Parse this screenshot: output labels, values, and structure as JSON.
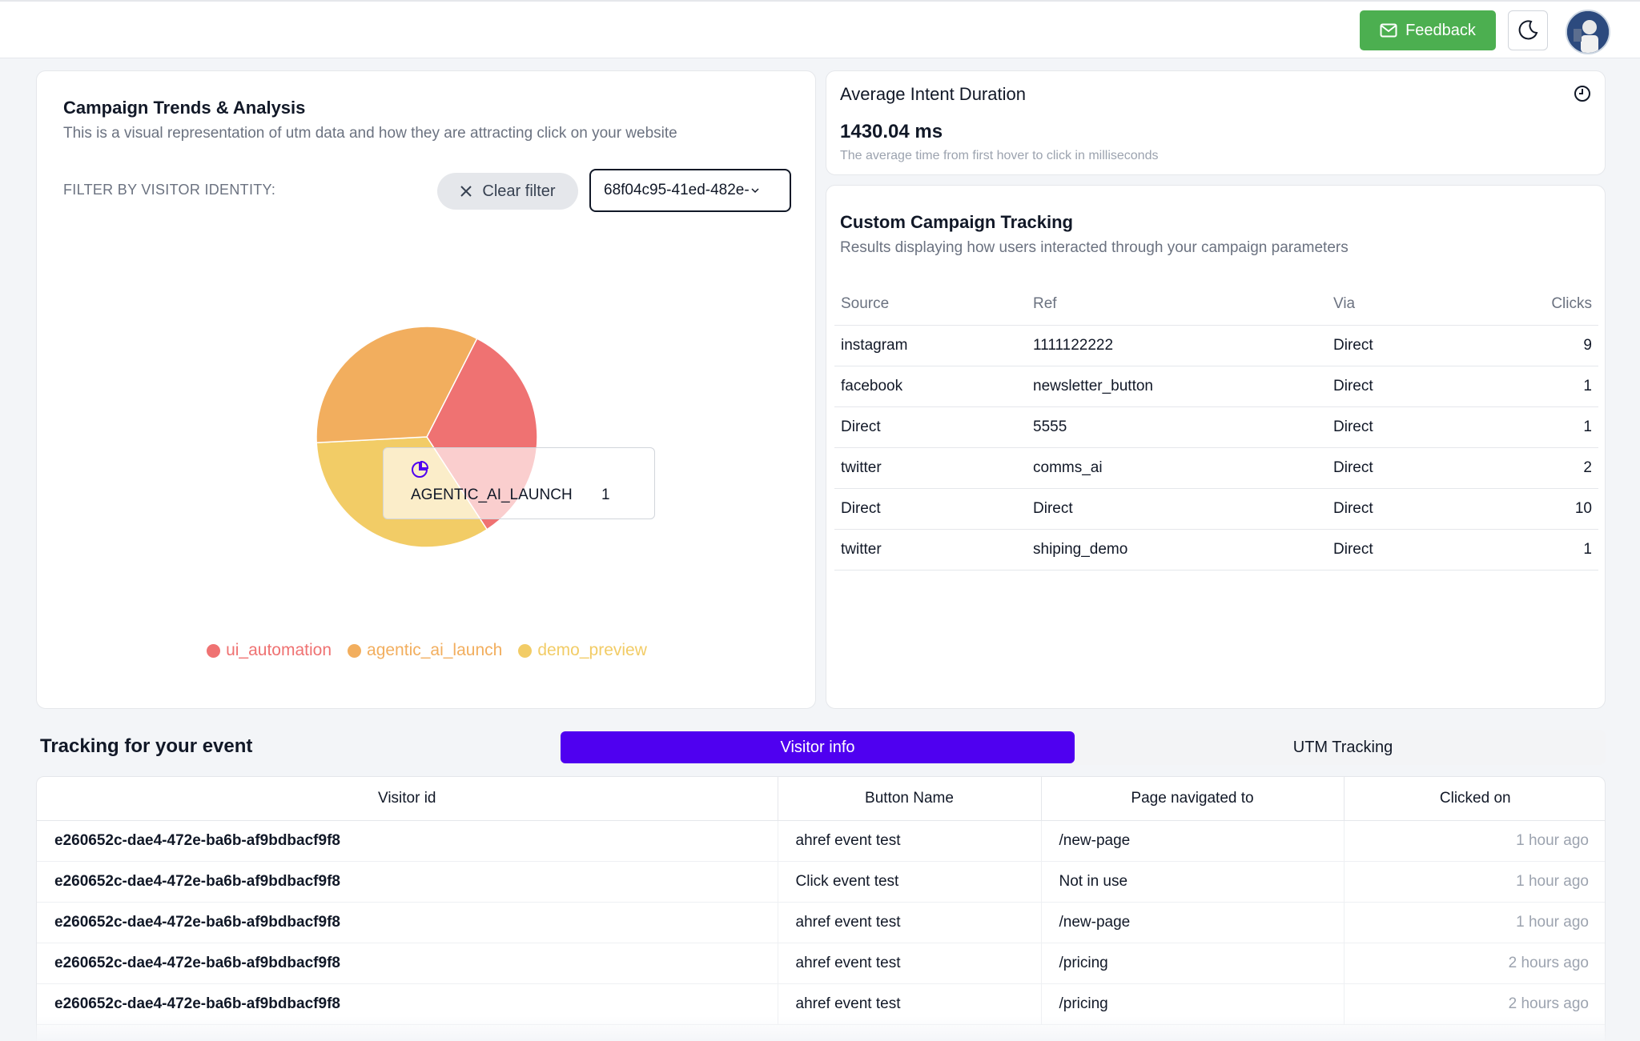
{
  "header": {
    "feedback_label": "Feedback",
    "icons": {
      "feedback": "mail-icon",
      "theme": "moon-icon"
    }
  },
  "campaign": {
    "title": "Campaign Trends & Analysis",
    "subtitle": "This is a visual representation of utm data and how they are attracting click on your website",
    "filter_label": "FILTER BY VISITOR IDENTITY:",
    "clear_filter_label": "Clear filter",
    "selected_visitor": "68f04c95-41ed-482e-"
  },
  "chart_data": {
    "type": "pie",
    "categories": [
      "ui_automation",
      "agentic_ai_launch",
      "demo_preview"
    ],
    "values": [
      1,
      1,
      1
    ],
    "colors": [
      "#ef7272",
      "#f2ae5e",
      "#f2cc66"
    ],
    "legend_position": "bottom",
    "tooltip": {
      "label": "AGENTIC_AI_LAUNCH",
      "value": "1"
    }
  },
  "intent": {
    "title": "Average Intent Duration",
    "value": "1430.04 ms",
    "description": "The average time from first hover to click in milliseconds",
    "icon": "clock-icon"
  },
  "custom_tracking": {
    "title": "Custom Campaign Tracking",
    "subtitle": "Results displaying how users interacted through your campaign parameters",
    "columns": [
      "Source",
      "Ref",
      "Via",
      "Clicks"
    ],
    "rows": [
      {
        "source": "instagram",
        "ref": "1111122222",
        "via": "Direct",
        "clicks": "9"
      },
      {
        "source": "facebook",
        "ref": "newsletter_button",
        "via": "Direct",
        "clicks": "1"
      },
      {
        "source": "Direct",
        "ref": "5555",
        "via": "Direct",
        "clicks": "1"
      },
      {
        "source": "twitter",
        "ref": "comms_ai",
        "via": "Direct",
        "clicks": "2"
      },
      {
        "source": "Direct",
        "ref": "Direct",
        "via": "Direct",
        "clicks": "10"
      },
      {
        "source": "twitter",
        "ref": "shiping_demo",
        "via": "Direct",
        "clicks": "1"
      }
    ]
  },
  "events": {
    "title": "Tracking for your event",
    "tabs": [
      {
        "label": "Visitor info",
        "active": true
      },
      {
        "label": "UTM Tracking",
        "active": false
      }
    ],
    "columns": [
      "Visitor id",
      "Button Name",
      "Page navigated to",
      "Clicked on"
    ],
    "rows": [
      {
        "visitor": "e260652c-dae4-472e-ba6b-af9bdbacf9f8",
        "button": "ahref event test",
        "page": "/new-page",
        "time": "1 hour ago"
      },
      {
        "visitor": "e260652c-dae4-472e-ba6b-af9bdbacf9f8",
        "button": "Click event test",
        "page": "Not in use",
        "time": "1 hour ago"
      },
      {
        "visitor": "e260652c-dae4-472e-ba6b-af9bdbacf9f8",
        "button": "ahref event test",
        "page": "/new-page",
        "time": "1 hour ago"
      },
      {
        "visitor": "e260652c-dae4-472e-ba6b-af9bdbacf9f8",
        "button": "ahref event test",
        "page": "/pricing",
        "time": "2 hours ago"
      },
      {
        "visitor": "e260652c-dae4-472e-ba6b-af9bdbacf9f8",
        "button": "ahref event test",
        "page": "/pricing",
        "time": "2 hours ago"
      }
    ]
  }
}
